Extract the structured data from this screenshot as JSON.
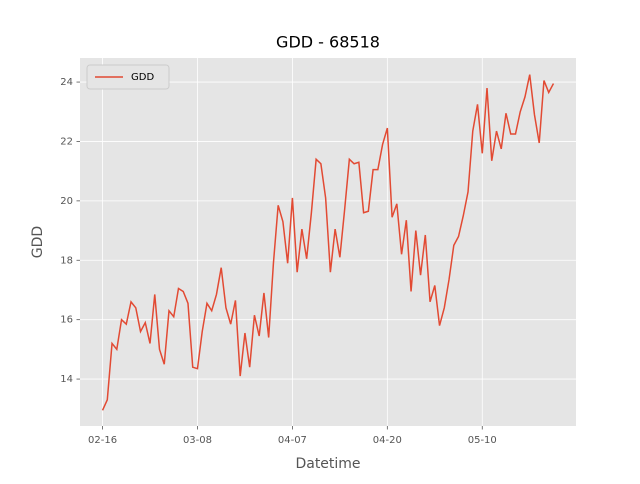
{
  "chart_data": {
    "type": "line",
    "title": "GDD - 68518",
    "x_label": "Datetime",
    "y_label": "GDD",
    "categories": [
      "02-16",
      null,
      null,
      null,
      null,
      null,
      null,
      null,
      null,
      null,
      null,
      null,
      null,
      null,
      null,
      null,
      null,
      null,
      null,
      null,
      "03-08",
      null,
      null,
      null,
      null,
      null,
      null,
      null,
      null,
      null,
      null,
      null,
      null,
      null,
      null,
      null,
      null,
      null,
      null,
      null,
      "04-07",
      null,
      null,
      null,
      null,
      null,
      null,
      null,
      null,
      null,
      null,
      null,
      null,
      null,
      null,
      null,
      null,
      null,
      null,
      null,
      "04-20",
      null,
      null,
      null,
      null,
      null,
      null,
      null,
      null,
      null,
      null,
      null,
      null,
      null,
      null,
      null,
      null,
      null,
      null,
      null,
      "05-10",
      null,
      null,
      null,
      null,
      null,
      null,
      null,
      null,
      null,
      null,
      null,
      null,
      null,
      null,
      null
    ],
    "series": [
      {
        "name": "GDD",
        "color": "#e24a33",
        "values": [
          12.95,
          13.3,
          15.2,
          15.0,
          16.0,
          15.85,
          16.6,
          16.4,
          15.6,
          15.9,
          15.2,
          16.85,
          15.0,
          14.5,
          16.3,
          16.1,
          17.05,
          16.95,
          16.55,
          14.4,
          14.35,
          15.6,
          16.55,
          16.3,
          16.85,
          17.75,
          16.4,
          15.85,
          16.65,
          14.1,
          15.55,
          14.4,
          16.15,
          15.45,
          16.9,
          15.4,
          17.9,
          19.85,
          19.3,
          17.9,
          20.1,
          17.6,
          19.05,
          18.05,
          19.6,
          21.4,
          21.25,
          20.1,
          17.6,
          19.05,
          18.1,
          19.7,
          21.4,
          21.25,
          21.3,
          19.6,
          19.65,
          21.05,
          21.05,
          21.9,
          22.45,
          19.45,
          19.9,
          18.2,
          19.35,
          16.95,
          19.0,
          17.5,
          18.85,
          16.6,
          17.15,
          15.8,
          16.4,
          17.35,
          18.5,
          18.8,
          19.5,
          20.3,
          22.35,
          23.25,
          21.6,
          23.8,
          21.35,
          22.35,
          21.75,
          22.95,
          22.25,
          22.25,
          23.0,
          23.5,
          24.25,
          22.9,
          21.95,
          24.05,
          23.65,
          23.95
        ]
      }
    ],
    "ylim": [
      12.42,
      24.81
    ],
    "yticks": [
      14,
      16,
      18,
      20,
      22,
      24
    ],
    "grid": true,
    "legend": "upper left"
  }
}
